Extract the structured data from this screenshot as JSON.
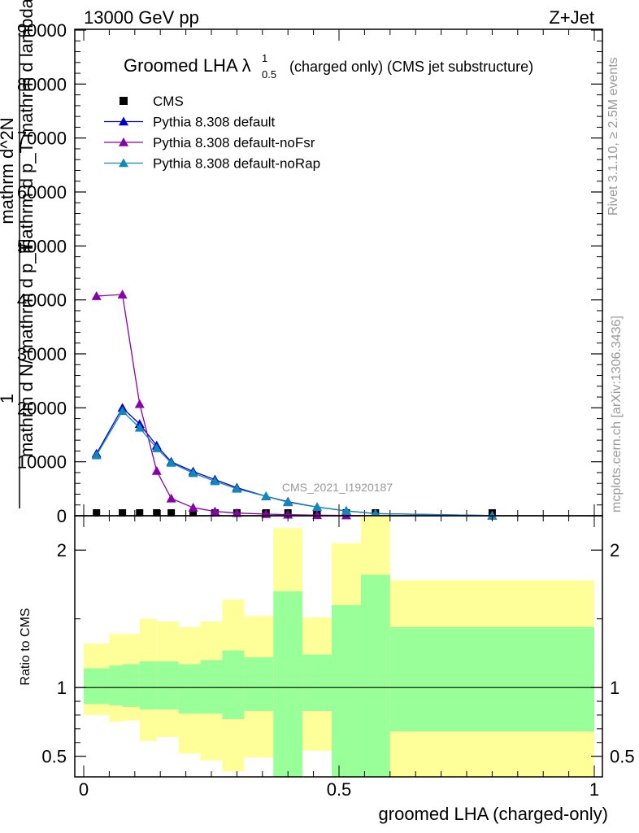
{
  "header": {
    "energy_label": "13000 GeV pp",
    "process_label": "Z+Jet"
  },
  "title": {
    "main": "Groomed LHA",
    "lambda": "λ",
    "sup": "1",
    "sub": "0.5",
    "rest": "(charged only) (CMS jet substructure)"
  },
  "side_labels": {
    "rivet": "Rivet 3.1.10, ≥ 2.5M events",
    "mcplots": "mcplots.cern.ch [arXiv:1306.3436]"
  },
  "watermark": "CMS_2021_I1920187",
  "ylabel_main": {
    "line1": "1",
    "line2": "mathrm d N/ mathrm d p_T",
    "line3": "mathrm d^2N",
    "line4": "mathrm d p_T mathrm d lambda"
  },
  "ratio_ylabel": "Ratio to CMS",
  "xlabel": "groomed LHA (charged-only)",
  "chart_data": {
    "type": "line",
    "x_edges": [
      0.0,
      0.05,
      0.0758,
      0.1095,
      0.1429,
      0.1857,
      0.2286,
      0.2714,
      0.3143,
      0.3714,
      0.4286,
      0.4857,
      0.5429,
      0.6,
      1.0
    ],
    "x": [
      0.025,
      0.0758,
      0.1095,
      0.1429,
      0.1714,
      0.2143,
      0.2571,
      0.3,
      0.3571,
      0.4,
      0.4571,
      0.5143,
      0.5714,
      0.8
    ],
    "main_panel": {
      "xlim": [
        0,
        1
      ],
      "ylim": [
        0,
        90000
      ],
      "yticks": [
        0,
        10000,
        20000,
        30000,
        40000,
        50000,
        60000,
        70000,
        80000,
        90000
      ],
      "ytick_labels": [
        "0",
        "10000",
        "20000",
        "30000",
        "40000",
        "50000",
        "60000",
        "70000",
        "80000",
        "90000"
      ],
      "ytick_labels_right": [
        "",
        "",
        "",
        "",
        "",
        "",
        "",
        "",
        "",
        ""
      ],
      "legend_position": "top-left"
    },
    "ratio_panel": {
      "ylim": [
        0.35,
        2.25
      ],
      "yticks": [
        0.5,
        1,
        2
      ],
      "ytick_labels": [
        "0.5",
        "1",
        "2"
      ],
      "reference_line": 1
    },
    "xticks": [
      0,
      0.5,
      1
    ],
    "xtick_labels": [
      "0",
      "0.5",
      "1"
    ],
    "series": [
      {
        "name": "CMS",
        "marker": "square",
        "color": "#000000",
        "values": [
          0.09,
          0.09,
          0.09,
          0.09,
          0.09,
          0.09,
          0.09,
          0.09,
          0.09,
          0.09,
          0.09,
          0.09,
          0.09,
          0.09
        ]
      },
      {
        "name": "Pythia 8.308 default",
        "marker": "triangle",
        "color": "#0000cc",
        "values": [
          11500,
          20000,
          17000,
          13000,
          10000,
          8200,
          6700,
          5200,
          3600,
          2600,
          1600,
          900,
          400,
          30
        ]
      },
      {
        "name": "Pythia 8.308 default-noFsr",
        "marker": "triangle",
        "color": "#8800aa",
        "values": [
          40700,
          41000,
          20700,
          8300,
          3200,
          1500,
          800,
          500,
          300,
          200,
          100,
          60,
          30,
          5
        ]
      },
      {
        "name": "Pythia 8.308 default-noRap",
        "marker": "triangle",
        "color": "#1188bb",
        "values": [
          11200,
          19400,
          16300,
          12500,
          9800,
          7900,
          6400,
          5000,
          3600,
          2500,
          1600,
          900,
          400,
          30
        ]
      }
    ],
    "ratio_bands": [
      {
        "name": "stat",
        "color": "#99ff99",
        "low": [
          0.88,
          0.87,
          0.86,
          0.84,
          0.84,
          0.81,
          0.81,
          0.77,
          0.83,
          0.35,
          0.83,
          0.35,
          0.35,
          0.68
        ],
        "high": [
          1.14,
          1.16,
          1.17,
          1.19,
          1.19,
          1.17,
          1.2,
          1.27,
          1.22,
          1.7,
          1.24,
          1.6,
          1.82,
          1.44
        ]
      },
      {
        "name": "total",
        "color": "#ffff99",
        "low": [
          0.8,
          0.75,
          0.76,
          0.61,
          0.64,
          0.52,
          0.47,
          0.39,
          0.49,
          0.35,
          0.54,
          0.35,
          0.35,
          0.35
        ],
        "high": [
          1.32,
          1.39,
          1.39,
          1.5,
          1.48,
          1.44,
          1.48,
          1.64,
          1.52,
          2.16,
          1.51,
          2.05,
          2.4,
          1.78
        ]
      }
    ]
  }
}
